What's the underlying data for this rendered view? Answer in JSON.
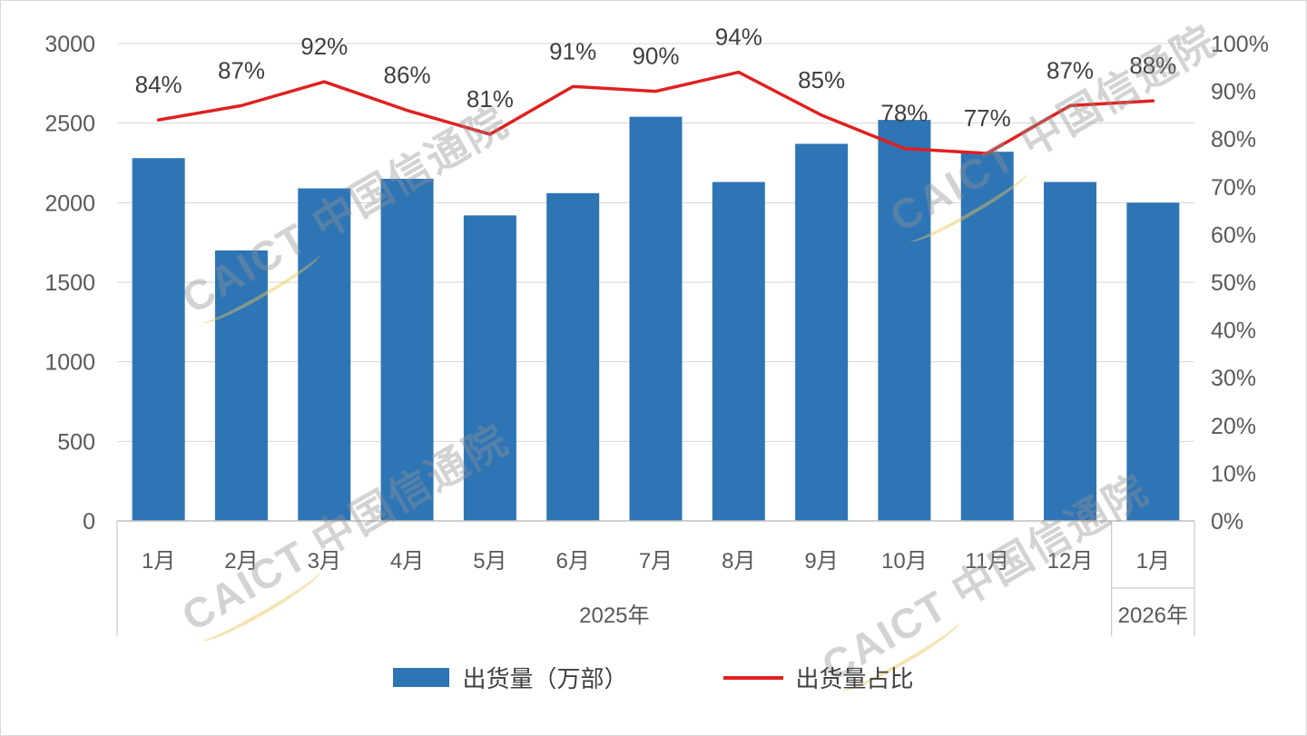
{
  "watermark": {
    "text": "CAICT 中国信通院"
  },
  "chart_data": {
    "type": "bar+line combo",
    "title": "",
    "categories": [
      "1月",
      "2月",
      "3月",
      "4月",
      "5月",
      "6月",
      "7月",
      "8月",
      "9月",
      "10月",
      "11月",
      "12月",
      "1月"
    ],
    "category_groups": [
      {
        "label": "2025年",
        "span": 12
      },
      {
        "label": "2026年",
        "span": 1
      }
    ],
    "series": [
      {
        "name": "出货量（万部）",
        "type": "bar",
        "axis": "left",
        "color": "#2E75B6",
        "values": [
          2280,
          1700,
          2090,
          2150,
          1920,
          2060,
          2540,
          2130,
          2370,
          2520,
          2320,
          2130,
          2000
        ]
      },
      {
        "name": "出货量占比",
        "type": "line",
        "axis": "right",
        "color": "#E02020",
        "values": [
          84,
          87,
          92,
          86,
          81,
          91,
          90,
          94,
          85,
          78,
          77,
          87,
          88
        ],
        "labels": [
          "84%",
          "87%",
          "92%",
          "86%",
          "81%",
          "91%",
          "90%",
          "94%",
          "85%",
          "78%",
          "77%",
          "87%",
          "88%"
        ]
      }
    ],
    "left_axis": {
      "min": 0,
      "max": 3000,
      "ticks": [
        {
          "value": 3000,
          "label": "3000"
        },
        {
          "value": 2500,
          "label": "2500"
        },
        {
          "value": 2000,
          "label": "2000"
        },
        {
          "value": 1500,
          "label": "1500"
        },
        {
          "value": 1000,
          "label": "1000"
        },
        {
          "value": 500,
          "label": "500"
        },
        {
          "value": 0,
          "label": "0"
        }
      ]
    },
    "right_axis": {
      "min": 0,
      "max": 100,
      "ticks": [
        {
          "value": 100,
          "label": "100%"
        },
        {
          "value": 90,
          "label": "90%"
        },
        {
          "value": 80,
          "label": "80%"
        },
        {
          "value": 70,
          "label": "70%"
        },
        {
          "value": 60,
          "label": "60%"
        },
        {
          "value": 50,
          "label": "50%"
        },
        {
          "value": 40,
          "label": "40%"
        },
        {
          "value": 30,
          "label": "30%"
        },
        {
          "value": 20,
          "label": "20%"
        },
        {
          "value": 10,
          "label": "10%"
        },
        {
          "value": 0,
          "label": "0%"
        }
      ]
    },
    "legend_position": "bottom",
    "grid": "horizontal"
  }
}
